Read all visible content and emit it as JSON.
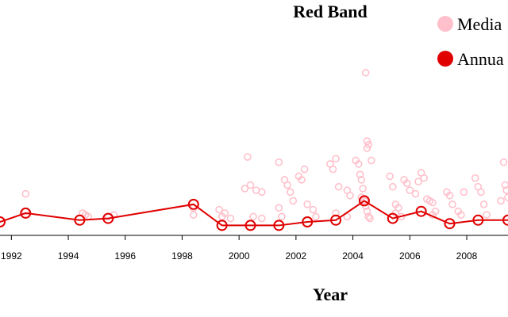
{
  "chart_data": {
    "type": "scatter",
    "title": "Red Band",
    "xlabel": "Year",
    "ylabel": "",
    "xlim": [
      1991.6,
      2009.45
    ],
    "ylim": [
      0,
      100
    ],
    "x_ticks": [
      1992,
      1994,
      1996,
      1998,
      2000,
      2002,
      2004,
      2006,
      2008
    ],
    "x_tick_labels": [
      "1992",
      "1994",
      "1996",
      "1998",
      "2000",
      "2002",
      "2004",
      "2006",
      "2008"
    ],
    "legend": {
      "placement": "top-right"
    },
    "series": [
      {
        "name": "Media",
        "kind": "scatter",
        "marker": "hollow-circle",
        "color": "#ffc0cb",
        "points": [
          [
            1992.5,
            16
          ],
          [
            1992.5,
            6
          ],
          [
            1994.5,
            5
          ],
          [
            1994.6,
            4
          ],
          [
            1994.7,
            3
          ],
          [
            1995.4,
            3
          ],
          [
            1995.6,
            4
          ],
          [
            1998.4,
            8
          ],
          [
            1998.4,
            4
          ],
          [
            1999.3,
            7
          ],
          [
            1999.4,
            3
          ],
          [
            1999.5,
            5
          ],
          [
            1999.7,
            2
          ],
          [
            2000.2,
            19
          ],
          [
            2000.3,
            37
          ],
          [
            2000.4,
            21
          ],
          [
            2000.6,
            18
          ],
          [
            2000.8,
            17
          ],
          [
            2000.5,
            3
          ],
          [
            2000.8,
            2
          ],
          [
            2001.4,
            34
          ],
          [
            2001.4,
            8
          ],
          [
            2001.6,
            24
          ],
          [
            2001.7,
            21
          ],
          [
            2001.8,
            17
          ],
          [
            2001.9,
            12
          ],
          [
            2001.5,
            3
          ],
          [
            2002.1,
            26
          ],
          [
            2002.2,
            24
          ],
          [
            2002.3,
            30
          ],
          [
            2002.4,
            10
          ],
          [
            2002.6,
            7
          ],
          [
            2002.7,
            3
          ],
          [
            2003.2,
            33
          ],
          [
            2003.3,
            30
          ],
          [
            2003.4,
            36
          ],
          [
            2003.5,
            20
          ],
          [
            2003.4,
            5
          ],
          [
            2003.8,
            18
          ],
          [
            2003.9,
            15
          ],
          [
            2003.8,
            3
          ],
          [
            2004.1,
            35
          ],
          [
            2004.2,
            33
          ],
          [
            2004.3,
            24
          ],
          [
            2004.25,
            27
          ],
          [
            2004.35,
            19
          ],
          [
            2004.3,
            14
          ],
          [
            2004.4,
            12
          ],
          [
            2004.45,
            9
          ],
          [
            2004.5,
            6
          ],
          [
            2004.55,
            3
          ],
          [
            2004.6,
            2
          ],
          [
            2004.45,
            85
          ],
          [
            2004.5,
            42
          ],
          [
            2004.55,
            44
          ],
          [
            2004.5,
            46
          ],
          [
            2004.65,
            35
          ],
          [
            2005.3,
            26
          ],
          [
            2005.4,
            20
          ],
          [
            2005.5,
            10
          ],
          [
            2005.6,
            8
          ],
          [
            2005.5,
            5
          ],
          [
            2005.7,
            3
          ],
          [
            2005.8,
            24
          ],
          [
            2005.9,
            22
          ],
          [
            2006.0,
            18
          ],
          [
            2006.2,
            16
          ],
          [
            2006.3,
            23
          ],
          [
            2006.4,
            28
          ],
          [
            2006.5,
            25
          ],
          [
            2006.6,
            13
          ],
          [
            2006.7,
            12
          ],
          [
            2006.8,
            11
          ],
          [
            2006.9,
            6
          ],
          [
            2006.8,
            4
          ],
          [
            2007.3,
            17
          ],
          [
            2007.4,
            15
          ],
          [
            2007.5,
            10
          ],
          [
            2007.7,
            6
          ],
          [
            2007.8,
            4
          ],
          [
            2007.9,
            17
          ],
          [
            2008.3,
            25
          ],
          [
            2008.4,
            20
          ],
          [
            2008.5,
            17
          ],
          [
            2008.6,
            10
          ],
          [
            2008.7,
            4
          ],
          [
            2009.2,
            12
          ],
          [
            2009.3,
            34
          ],
          [
            2009.35,
            21
          ],
          [
            2009.4,
            18
          ],
          [
            2009.45,
            14
          ]
        ]
      },
      {
        "name": "Annua",
        "kind": "line-with-markers",
        "marker": "hollow-circle",
        "color": "#e00000",
        "points": [
          [
            1991.6,
            0
          ],
          [
            1992.5,
            5
          ],
          [
            1994.4,
            1
          ],
          [
            1995.4,
            2
          ],
          [
            1998.4,
            10
          ],
          [
            1999.4,
            -2
          ],
          [
            2000.4,
            -2
          ],
          [
            2001.4,
            -2
          ],
          [
            2002.4,
            0
          ],
          [
            2003.4,
            1
          ],
          [
            2004.4,
            12
          ],
          [
            2005.4,
            2
          ],
          [
            2006.4,
            6
          ],
          [
            2007.4,
            -1
          ],
          [
            2008.4,
            1
          ],
          [
            2009.45,
            1
          ]
        ]
      }
    ]
  }
}
